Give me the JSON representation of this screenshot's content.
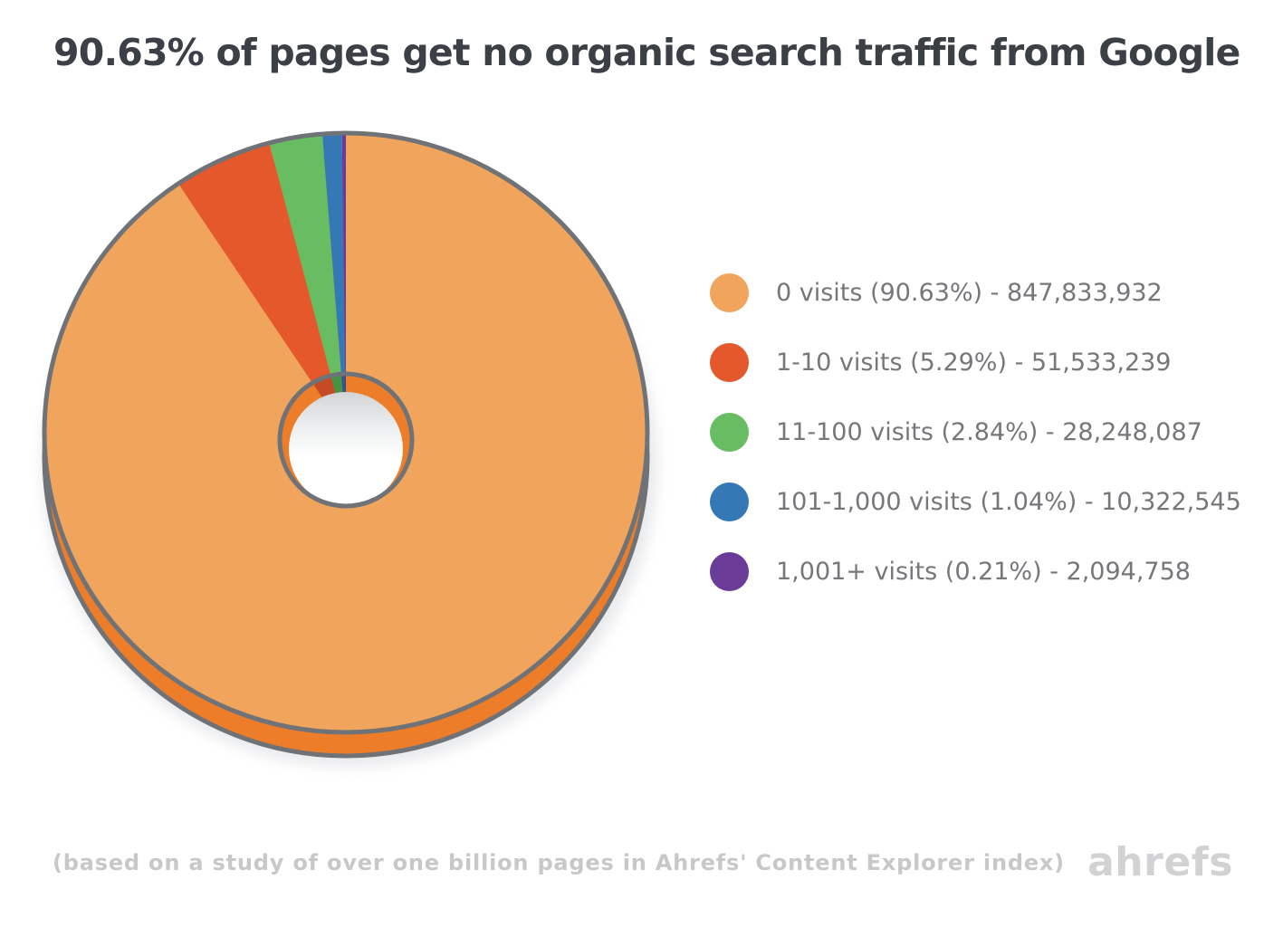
{
  "title": "90.63% of pages get no organic search traffic from Google",
  "footer": {
    "note": "(based on a study of over one billion pages in Ahrefs' Content Explorer index)",
    "brand": "ahrefs"
  },
  "colors": {
    "title_text": "#3b3f46",
    "legend_text": "#75777b",
    "footer_text": "#c7c8ca",
    "brand_text": "#d1d2d4",
    "outline": "#6f7377",
    "shadow": "#eaebed",
    "hole_shadow_top": "#d3d4d6"
  },
  "chart_data": {
    "type": "pie",
    "subtype": "3d-donut",
    "title": "90.63% of pages get no organic search traffic from Google",
    "legend_position": "right",
    "start_angle_deg": 0,
    "direction": "clockwise",
    "series": [
      {
        "label": "0 visits",
        "percent": 90.63,
        "value": 847833932,
        "legend_label": "0 visits (90.63%) - 847,833,932",
        "color": "#f0a45c",
        "side_color": "#ed7d28"
      },
      {
        "label": "1-10 visits",
        "percent": 5.29,
        "value": 51533239,
        "legend_label": "1-10 visits (5.29%) - 51,533,239",
        "color": "#e4582c",
        "side_color": "#c44b24"
      },
      {
        "label": "11-100 visits",
        "percent": 2.84,
        "value": 28248087,
        "legend_label": "11-100 visits (2.84%) - 28,248,087",
        "color": "#68bd62",
        "side_color": "#479343"
      },
      {
        "label": "101-1,000 visits",
        "percent": 1.04,
        "value": 10322545,
        "legend_label": "101-1,000 visits (1.04%) - 10,322,545",
        "color": "#3478b5",
        "side_color": "#2a5a8e"
      },
      {
        "label": "1,001+ visits",
        "percent": 0.21,
        "value": 2094758,
        "legend_label": "1,001+ visits (0.21%) - 2,094,758",
        "color": "#6a3c98",
        "side_color": "#523077"
      }
    ]
  }
}
